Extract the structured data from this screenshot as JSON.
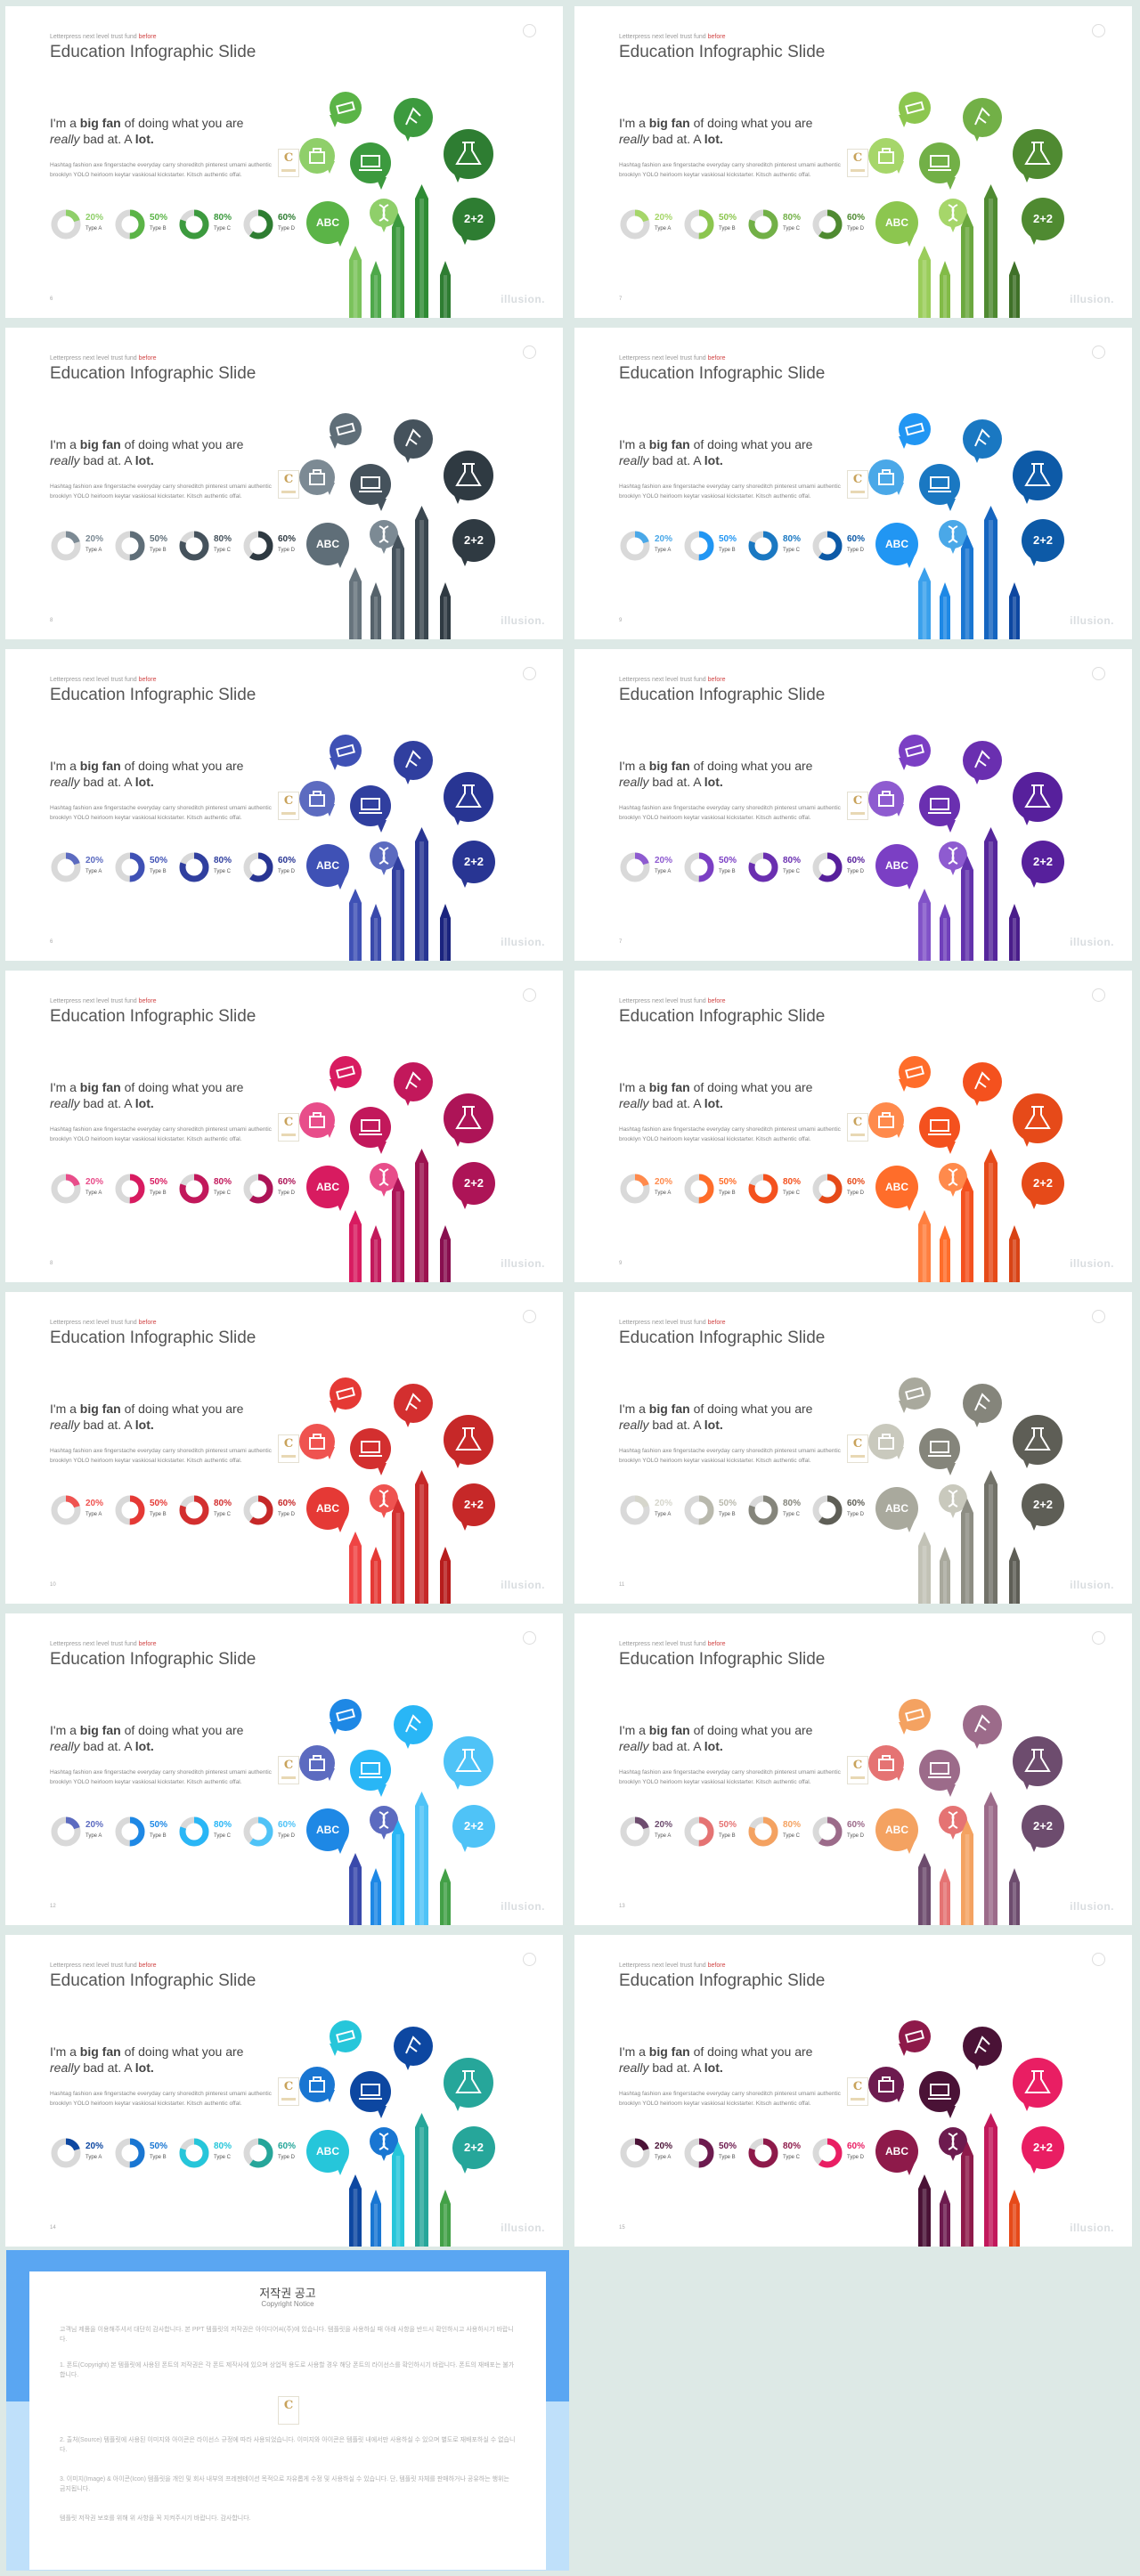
{
  "slide_common": {
    "small_head": "Letterpress next level trust fund",
    "small_head_highlight": "before",
    "title": "Education Infographic Slide",
    "headline_pre": "I'm a ",
    "headline_bold": "big fan",
    "headline_mid": " of doing what you are",
    "headline_italic": "really",
    "headline_end": " bad at. A ",
    "headline_lot": "lot.",
    "body": "Hashtag fashion axe fingerstache everyday carry shoreditch pinterest umami authentic brooklyn YOLO heirloom keytar vaskiosal kickstarter. Kitsch authentic offal.",
    "brand": "illusion.",
    "bubble_text": "2+2",
    "abc_text": "ABC",
    "logo_letter": "C",
    "donuts": [
      {
        "pct": "20%",
        "type": "Type A",
        "value": 0.2
      },
      {
        "pct": "50%",
        "type": "Type B",
        "value": 0.5
      },
      {
        "pct": "80%",
        "type": "Type C",
        "value": 0.8
      },
      {
        "pct": "60%",
        "type": "Type D",
        "value": 0.6
      }
    ]
  },
  "slides": [
    {
      "page": "6",
      "colors": [
        "#8fcf6a",
        "#5bb447",
        "#3c9a3e",
        "#2e7d32"
      ],
      "donut_colors": [
        "#8fcf6a",
        "#5bb447",
        "#3c9a3e",
        "#2e7d32"
      ],
      "pencils": [
        "#7ac25b",
        "#4ea84a",
        "#3c9a3e",
        "#2e8b34",
        "#2e7d32"
      ]
    },
    {
      "page": "7",
      "colors": [
        "#a6d66a",
        "#8cc64f",
        "#72b047",
        "#4f8a31"
      ],
      "donut_colors": [
        "#a6d66a",
        "#8cc64f",
        "#72b047",
        "#4f8a31"
      ],
      "pencils": [
        "#9acd5a",
        "#82bb47",
        "#6ba83f",
        "#4f8a31",
        "#3f7128"
      ]
    },
    {
      "page": "8",
      "colors": [
        "#7c8a94",
        "#5f6e78",
        "#45525c",
        "#2f3a42"
      ],
      "donut_colors": [
        "#7c8a94",
        "#5f6e78",
        "#45525c",
        "#2f3a42"
      ],
      "pencils": [
        "#66737c",
        "#55626b",
        "#45525c",
        "#3a464f",
        "#2f3a42"
      ]
    },
    {
      "page": "9",
      "colors": [
        "#4aa8e8",
        "#2196f3",
        "#1a78c2",
        "#0d5aa7"
      ],
      "donut_colors": [
        "#4aa8e8",
        "#2196f3",
        "#1a78c2",
        "#0d5aa7"
      ],
      "pencils": [
        "#3aa0ec",
        "#1e88e5",
        "#1976d2",
        "#1565c0",
        "#0d47a1"
      ]
    },
    {
      "page": "6",
      "colors": [
        "#5c6bc0",
        "#3f51b5",
        "#303f9f",
        "#283593"
      ],
      "donut_colors": [
        "#5c6bc0",
        "#3f51b5",
        "#303f9f",
        "#283593"
      ],
      "pencils": [
        "#3f51b5",
        "#3949ab",
        "#303f9f",
        "#283593",
        "#1a237e"
      ]
    },
    {
      "page": "7",
      "colors": [
        "#8e5bd0",
        "#7b3fc4",
        "#6a2fb0",
        "#57209c"
      ],
      "donut_colors": [
        "#8e5bd0",
        "#7b3fc4",
        "#6a2fb0",
        "#57209c"
      ],
      "pencils": [
        "#8152c8",
        "#7040bb",
        "#6232ac",
        "#56269c",
        "#4a1d8a"
      ]
    },
    {
      "page": "8",
      "colors": [
        "#e84d8a",
        "#d81b60",
        "#c2185b",
        "#ad1457"
      ],
      "donut_colors": [
        "#e84d8a",
        "#d81b60",
        "#c2185b",
        "#ad1457"
      ],
      "pencils": [
        "#d81b60",
        "#c2185b",
        "#ad1457",
        "#9c124f",
        "#880e4f"
      ]
    },
    {
      "page": "9",
      "colors": [
        "#ff8a4c",
        "#ff6d2a",
        "#f4511e",
        "#e64a19"
      ],
      "donut_colors": [
        "#ff8a4c",
        "#ff6d2a",
        "#f4511e",
        "#e64a19"
      ],
      "pencils": [
        "#ff7f3f",
        "#ff6d2a",
        "#f4511e",
        "#e64a19",
        "#d84315"
      ]
    },
    {
      "page": "10",
      "colors": [
        "#ef5350",
        "#e53935",
        "#d32f2f",
        "#c62828"
      ],
      "donut_colors": [
        "#ef5350",
        "#e53935",
        "#d32f2f",
        "#c62828"
      ],
      "pencils": [
        "#ef4444",
        "#e53935",
        "#d32f2f",
        "#c62828",
        "#b71c1c"
      ]
    },
    {
      "page": "11",
      "colors": [
        "#c9c9bd",
        "#a9a99d",
        "#85857b",
        "#5e5e56"
      ],
      "donut_colors": [
        "#d6d6cc",
        "#b9b9ad",
        "#85857b",
        "#5e5e56"
      ],
      "pencils": [
        "#c2c2b6",
        "#a9a99d",
        "#8d8d83",
        "#727269",
        "#5e5e56"
      ]
    },
    {
      "page": "12",
      "colors": [
        "#5c6bc0",
        "#1e88e5",
        "#29b6f6",
        "#4fc3f7"
      ],
      "donut_colors": [
        "#5c6bc0",
        "#1e88e5",
        "#29b6f6",
        "#4fc3f7"
      ],
      "pencils": [
        "#3949ab",
        "#1e88e5",
        "#29b6f6",
        "#4fc3f7",
        "#43a047"
      ]
    },
    {
      "page": "13",
      "colors": [
        "#e57373",
        "#f4a261",
        "#9c6b8a",
        "#6d4c6e"
      ],
      "donut_colors": [
        "#6d4c6e",
        "#e57373",
        "#f4a261",
        "#9c6b8a"
      ],
      "pencils": [
        "#6d4c6e",
        "#e57373",
        "#f4a261",
        "#9c6b8a",
        "#6d4c6e"
      ]
    },
    {
      "page": "14",
      "colors": [
        "#1976d2",
        "#26c6da",
        "#0d47a1",
        "#26a69a"
      ],
      "donut_colors": [
        "#0d47a1",
        "#1976d2",
        "#26c6da",
        "#26a69a"
      ],
      "pencils": [
        "#0d47a1",
        "#1976d2",
        "#26c6da",
        "#26a69a",
        "#43a047"
      ]
    },
    {
      "page": "15",
      "colors": [
        "#6d1b4f",
        "#8e1a4a",
        "#4a1236",
        "#e91e63"
      ],
      "donut_colors": [
        "#4a1236",
        "#6d1b4f",
        "#8e1a4a",
        "#e91e63"
      ],
      "pencils": [
        "#4a1236",
        "#6d1b4f",
        "#8e1a4a",
        "#c2185b",
        "#e64a19"
      ]
    }
  ],
  "notice": {
    "title": "저작권 공고",
    "subtitle": "Copyright Notice",
    "paragraphs": [
      "고객님 제품을 이용해주셔서 대단히 감사합니다. 본 PPT 템플릿의 저작권은 아이디어씨(주)에 있습니다. 템플릿을 사용하실 때 아래 사항을 반드시 확인하시고 사용하시기 바랍니다.",
      "1. 폰트(Copyright) 본 템플릿에 사용된 폰트의 저작권은 각 폰트 제작사에 있으며 상업적 용도로 사용할 경우 해당 폰트의 라이선스를 확인하시기 바랍니다. 폰트의 재배포는 불가합니다.",
      "2. 출처(Source) 템플릿에 사용된 이미지와 아이콘은 라이선스 규정에 따라 사용되었습니다. 이미지와 아이콘은 템플릿 내에서만 사용하실 수 있으며 별도로 재배포하실 수 없습니다.",
      "3. 이미지(Image) & 아이콘(Icon) 템플릿을 개인 및 회사 내부의 프레젠테이션 목적으로 자유롭게 수정 및 사용하실 수 있습니다. 단, 템플릿 자체를 판매하거나 공유하는 행위는 금지됩니다.",
      "템플릿 저작권 보호를 위해 위 사항을 꼭 지켜주시기 바랍니다. 감사합니다."
    ]
  }
}
